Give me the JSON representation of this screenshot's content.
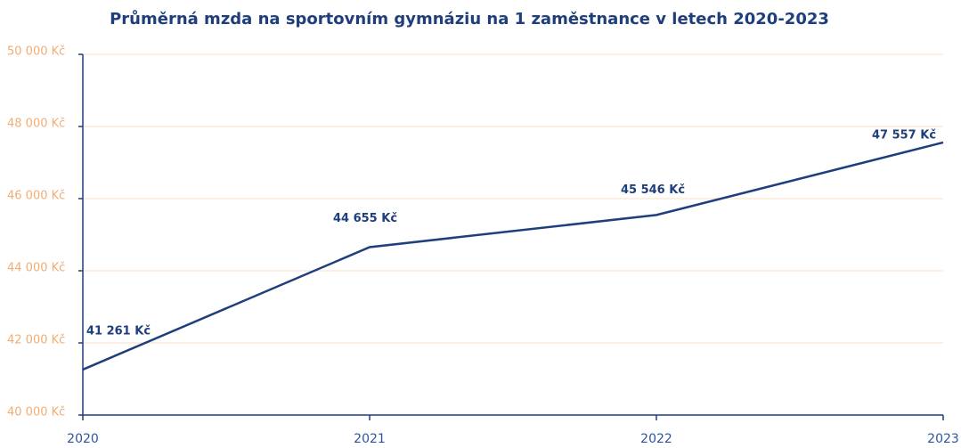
{
  "chart_data": {
    "type": "line",
    "title": "Průměrná mzda na sportovním gymnáziu na 1 zaměstnance v letech 2020-2023",
    "categories": [
      "2020",
      "2021",
      "2022",
      "2023"
    ],
    "series": [
      {
        "color": "#1f3e7c",
        "values": [
          41261,
          44655,
          45546,
          47557
        ],
        "value_labels": [
          "41 261 Kč",
          "44 655 Kč",
          "45 546 Kč",
          "47 557 Kč"
        ]
      }
    ],
    "ylim": [
      40000,
      50000
    ],
    "yticks": [
      {
        "value": 40000,
        "label": "40 000 Kč"
      },
      {
        "value": 42000,
        "label": "42 000 Kč"
      },
      {
        "value": 44000,
        "label": "44 000 Kč"
      },
      {
        "value": 46000,
        "label": "46 000 Kč"
      },
      {
        "value": 48000,
        "label": "48 000 Kč"
      },
      {
        "value": 50000,
        "label": "50 000 Kč"
      }
    ],
    "grid": true
  }
}
